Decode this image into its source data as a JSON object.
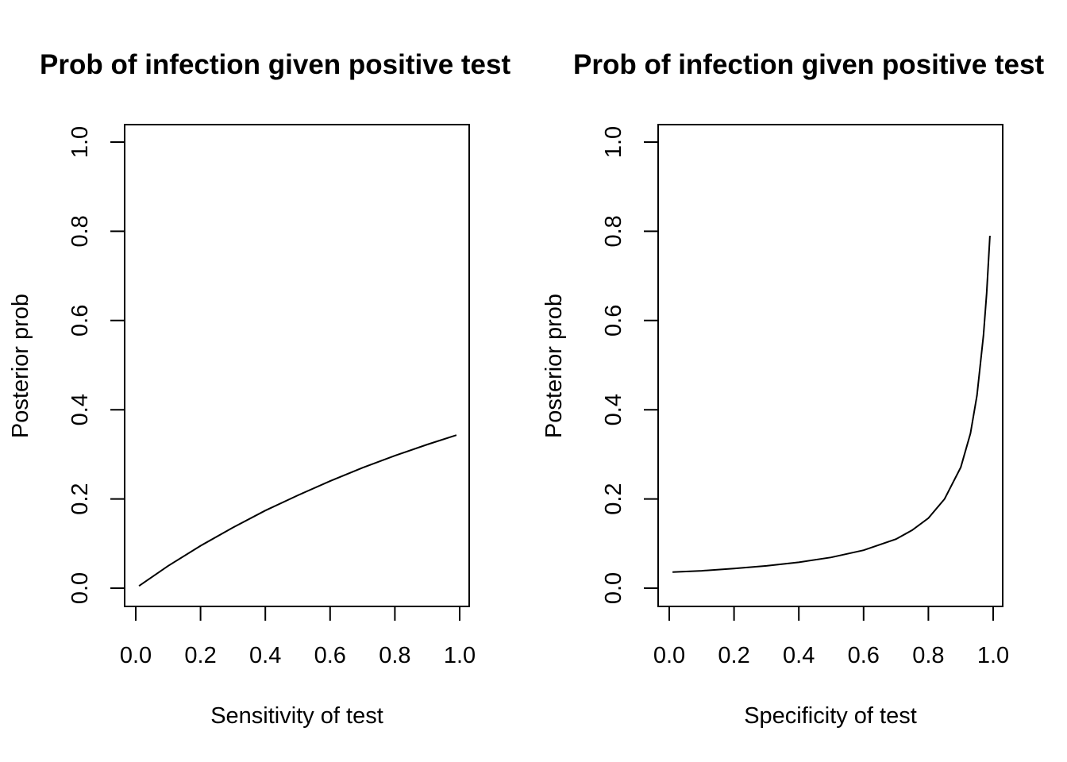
{
  "chart_data": [
    {
      "type": "line",
      "title": "Prob of infection given positive test",
      "xlabel": "Sensitivity of test",
      "ylabel": "Posterior prob",
      "xlim": [
        0,
        1
      ],
      "ylim": [
        0,
        1
      ],
      "xticks": [
        "0.0",
        "0.2",
        "0.4",
        "0.6",
        "0.8",
        "1.0"
      ],
      "yticks": [
        "0.0",
        "0.2",
        "0.4",
        "0.6",
        "0.8",
        "1.0"
      ],
      "grid": false,
      "series": [
        {
          "x": [
            0.01,
            0.1,
            0.2,
            0.3,
            0.4,
            0.5,
            0.6,
            0.7,
            0.8,
            0.9,
            0.99
          ],
          "y": [
            0.005,
            0.05,
            0.095,
            0.136,
            0.174,
            0.208,
            0.24,
            0.27,
            0.297,
            0.322,
            0.343
          ]
        }
      ]
    },
    {
      "type": "line",
      "title": "Prob of infection given positive test",
      "xlabel": "Specificity of test",
      "ylabel": "Posterior prob",
      "xlim": [
        0,
        1
      ],
      "ylim": [
        0,
        1
      ],
      "xticks": [
        "0.0",
        "0.2",
        "0.4",
        "0.6",
        "0.8",
        "1.0"
      ],
      "yticks": [
        "0.0",
        "0.2",
        "0.4",
        "0.6",
        "0.8",
        "1.0"
      ],
      "grid": false,
      "series": [
        {
          "x": [
            0.01,
            0.1,
            0.2,
            0.3,
            0.4,
            0.5,
            0.6,
            0.7,
            0.75,
            0.8,
            0.85,
            0.9,
            0.93,
            0.95,
            0.97,
            0.98,
            0.99
          ],
          "y": [
            0.036,
            0.039,
            0.044,
            0.05,
            0.058,
            0.069,
            0.085,
            0.11,
            0.13,
            0.157,
            0.2,
            0.271,
            0.347,
            0.432,
            0.567,
            0.661,
            0.79
          ]
        }
      ]
    }
  ]
}
